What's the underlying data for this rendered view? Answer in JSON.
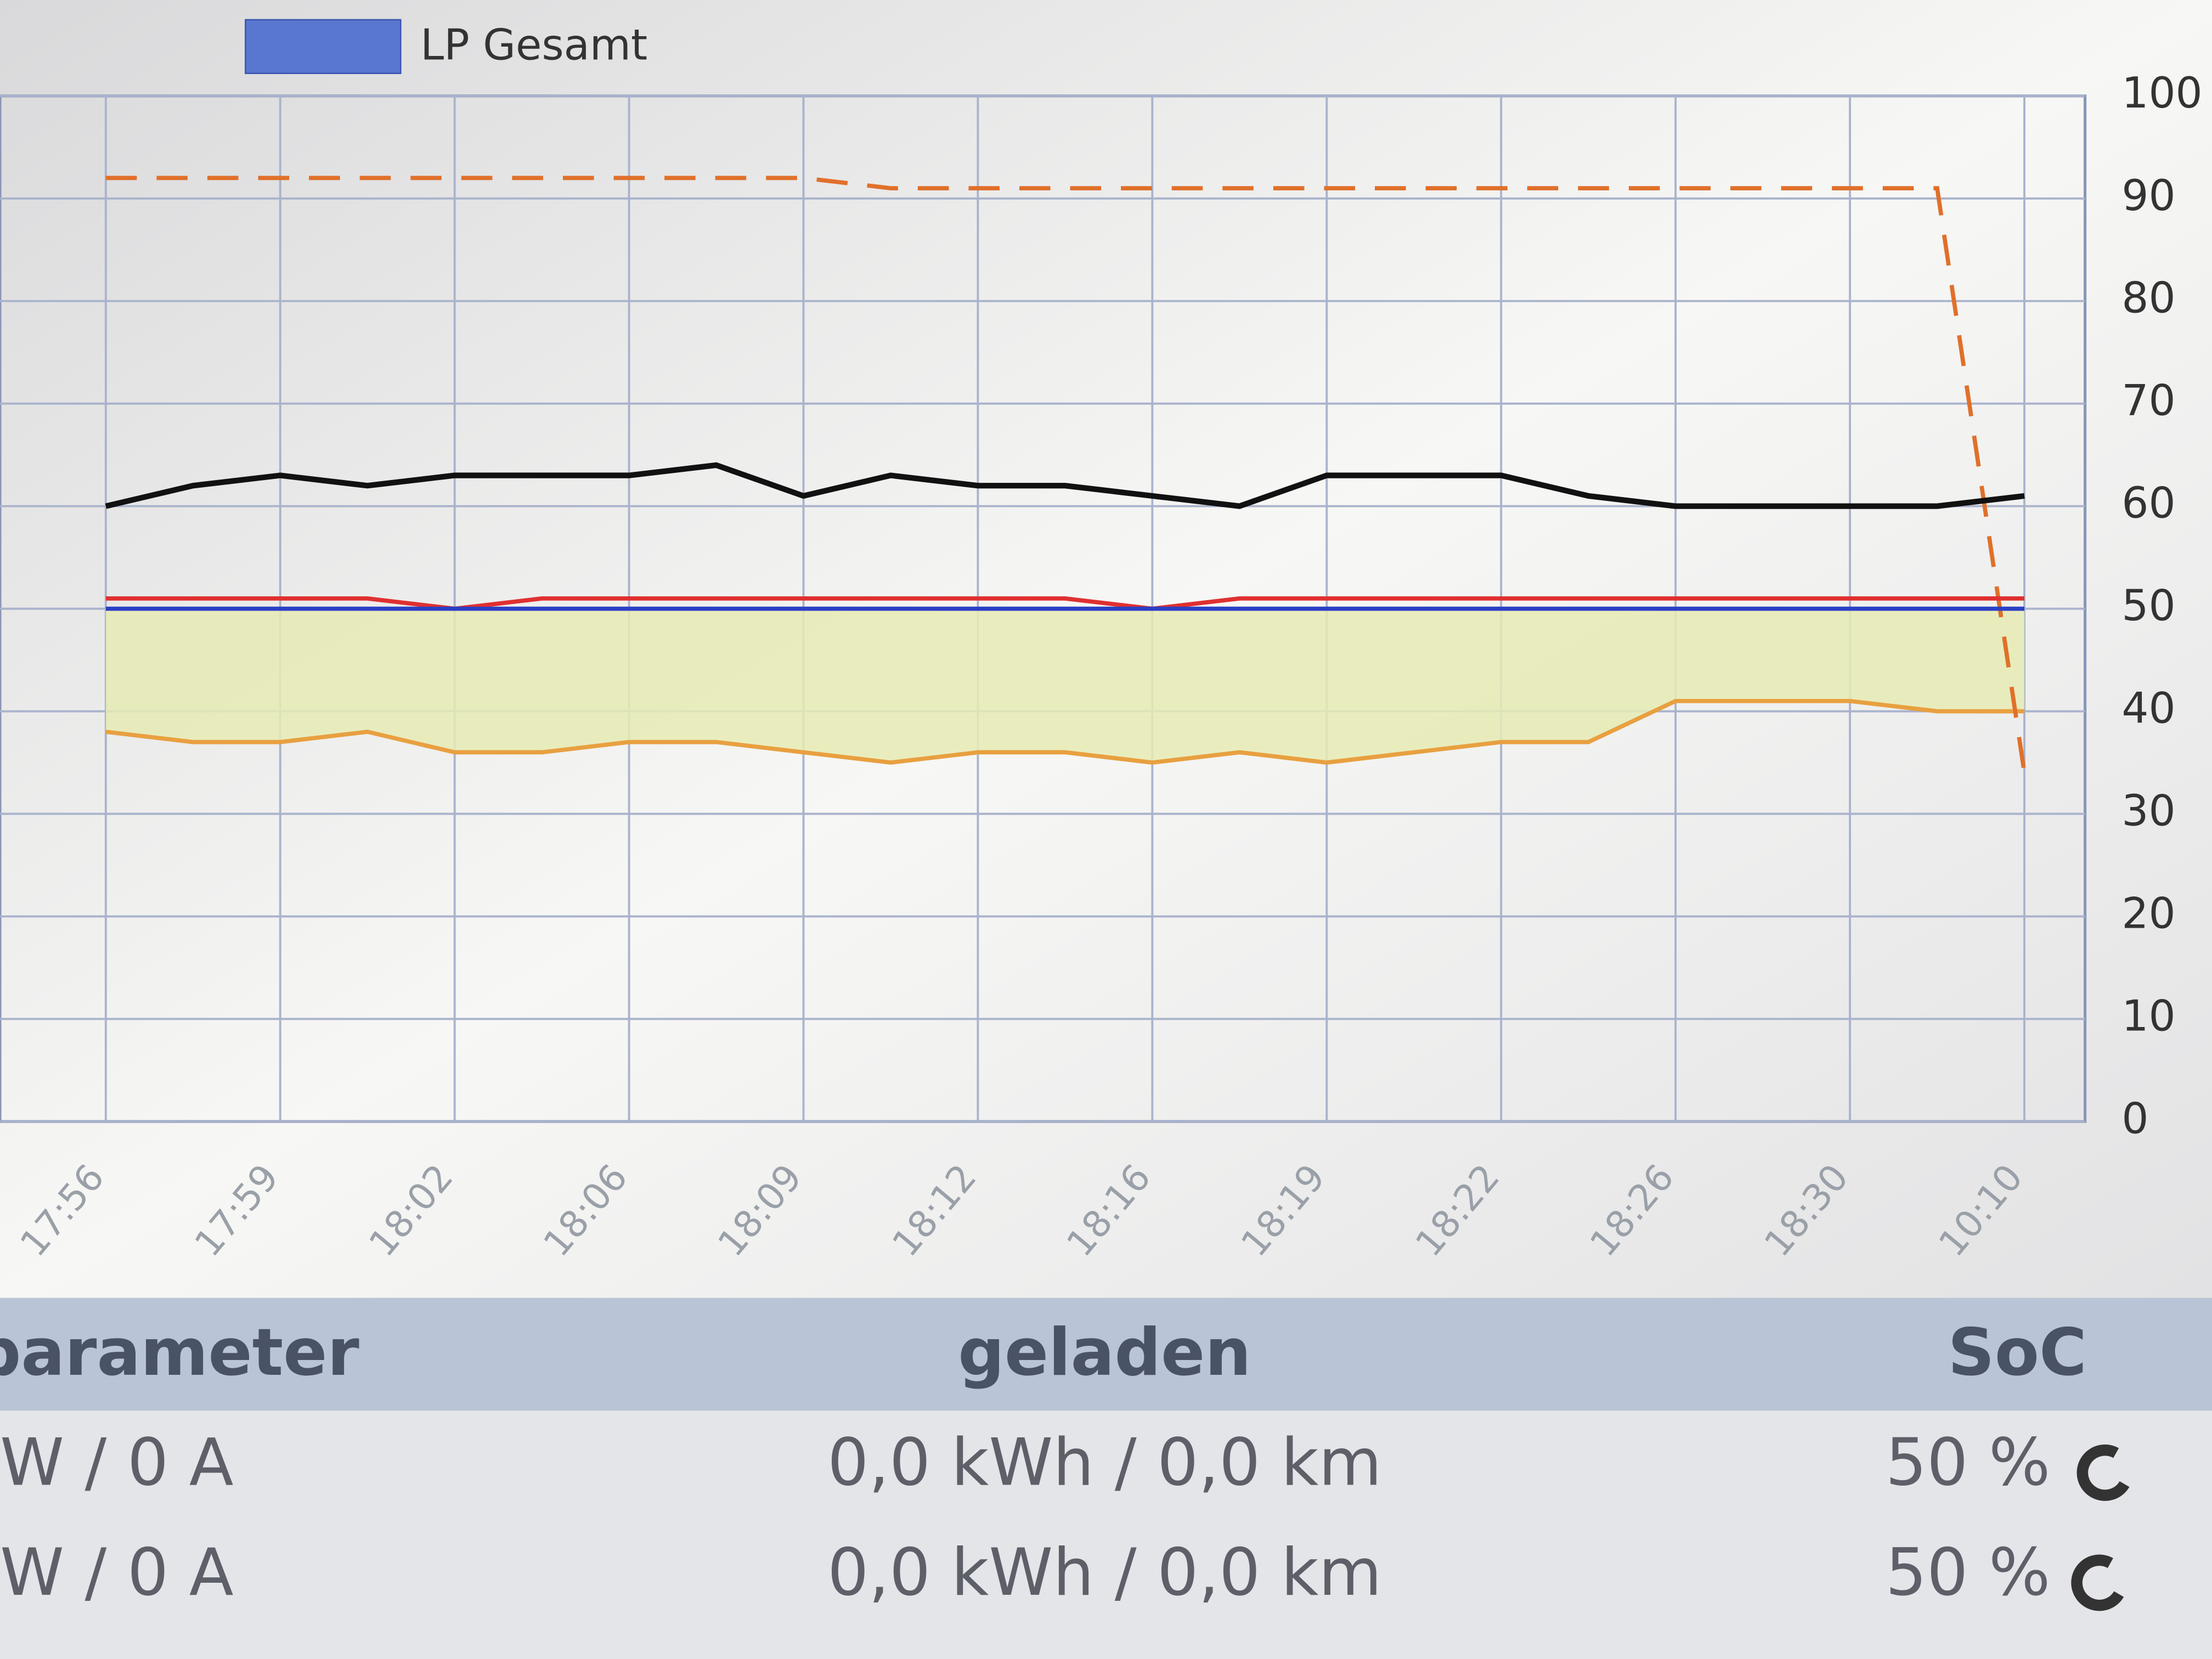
{
  "chart_data": {
    "type": "line",
    "categories": [
      "17:56",
      null,
      "17:59",
      null,
      "18:02",
      null,
      "18:06",
      null,
      "18:09",
      null,
      "18:12",
      null,
      "18:16",
      null,
      "18:19",
      null,
      "18:22",
      null,
      "18:26",
      null,
      "18:30",
      null,
      "10:10"
    ],
    "ylim": [
      0,
      100
    ],
    "yticks": [
      0,
      10,
      20,
      30,
      40,
      50,
      60,
      70,
      80,
      90,
      100
    ],
    "grid": true,
    "legend": "top-left",
    "series": [
      {
        "name": "LP Gesamt",
        "color": "#2b3fc4",
        "values": [
          50,
          50,
          50,
          50,
          50,
          50,
          50,
          50,
          50,
          50,
          50,
          50,
          50,
          50,
          50,
          50,
          50,
          50,
          50,
          50,
          50,
          50,
          50
        ]
      },
      {
        "color": "#111111",
        "values": [
          60,
          62,
          63,
          62,
          63,
          63,
          63,
          64,
          61,
          63,
          62,
          62,
          61,
          60,
          63,
          63,
          63,
          61,
          60,
          60,
          60,
          60,
          61
        ]
      },
      {
        "color": "#e03030",
        "values": [
          51,
          51,
          51,
          51,
          50,
          51,
          51,
          51,
          51,
          51,
          51,
          51,
          50,
          51,
          51,
          51,
          51,
          51,
          51,
          51,
          51,
          51,
          51
        ]
      },
      {
        "color": "#e0702a",
        "dashed": true,
        "values": [
          92,
          92,
          92,
          92,
          92,
          92,
          92,
          92,
          92,
          91,
          91,
          91,
          91,
          91,
          91,
          91,
          91,
          91,
          91,
          91,
          91,
          91,
          34
        ]
      },
      {
        "color": "#e8a040",
        "fill": "#e6ebb4",
        "values": [
          38,
          37,
          37,
          38,
          36,
          36,
          37,
          37,
          36,
          35,
          36,
          36,
          35,
          36,
          35,
          36,
          37,
          37,
          41,
          41,
          41,
          40,
          40
        ]
      }
    ]
  },
  "table": {
    "header": [
      "parameter",
      "geladen",
      "SoC"
    ],
    "rows": [
      [
        "W / 0 A",
        "0,0 kWh / 0,0 km",
        "50 %"
      ],
      [
        "W / 0 A",
        "0,0 kWh / 0,0 km",
        "50 %"
      ]
    ]
  }
}
